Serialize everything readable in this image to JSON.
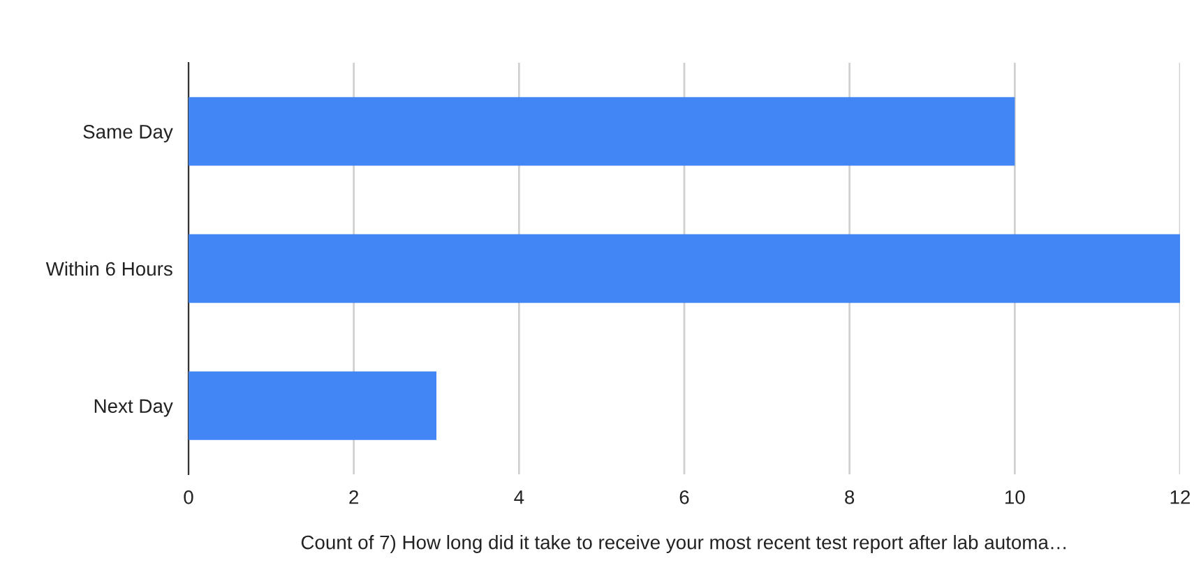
{
  "chart_data": {
    "type": "bar",
    "orientation": "horizontal",
    "categories": [
      "Same Day",
      "Within 6 Hours",
      "Next Day"
    ],
    "values": [
      10,
      12,
      3
    ],
    "color": "#4285f4",
    "xlim": [
      0,
      12
    ],
    "xticks": [
      0,
      2,
      4,
      6,
      8,
      10,
      12
    ],
    "grid": "x",
    "xlabel": "Count of 7) How long did it take to receive your most recent test report after lab automa…"
  }
}
